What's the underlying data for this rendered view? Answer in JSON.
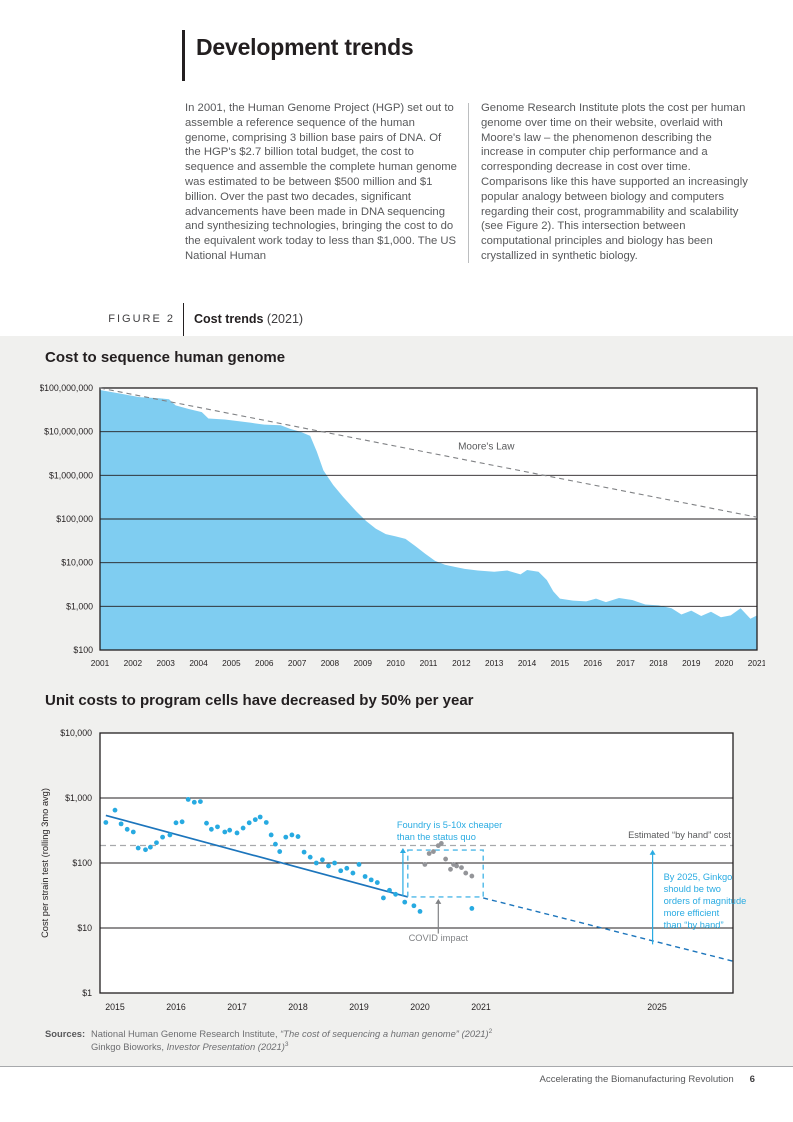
{
  "page": {
    "title": "Development trends",
    "columns": {
      "left": "In 2001, the Human Genome Project (HGP) set out to assemble a reference sequence of the human genome, comprising 3 billion base pairs of DNA. Of the HGP's $2.7 billion total budget, the cost to sequence and assemble the complete human genome was estimated to be between $500 million and $1 billion. Over the past two decades, significant advancements have been made in DNA sequencing and synthesizing technologies, bringing the cost to do the equivalent work today to less than $1,000. The US National Human",
      "right": "Genome Research Institute plots the cost per human genome over time on their website, overlaid with Moore's law – the phenomenon describing the increase in computer chip performance and a corresponding decrease in cost over time. Comparisons like this have supported an increasingly popular analogy between biology and computers regarding their cost, programmability and scalability (see Figure 2). This intersection between computational principles and biology has been crystallized in synthetic biology."
    },
    "figure": {
      "label": "FIGURE 2",
      "title": "Cost trends",
      "suffix": " (2021)"
    },
    "sources": {
      "label": "Sources:",
      "line1_prefix": "National Human Genome Research Institute, ",
      "line1_italic": "“The cost of sequencing a human genome” (2021)",
      "line1_sup": "2",
      "line2_prefix": "Ginkgo Bioworks, ",
      "line2_italic": "Investor Presentation (2021)",
      "line2_sup": "3"
    },
    "footer": {
      "text": "Accelerating the Biomanufacturing Revolution",
      "page_number": "6"
    }
  },
  "chart_data": [
    {
      "type": "area",
      "title": "Cost to sequence human genome",
      "log_scale": true,
      "ylim": [
        100,
        100000000
      ],
      "xlim": [
        2001,
        2021
      ],
      "grid": "horizontal",
      "y_ticks": [
        "$100,000,000",
        "$10,000,000",
        "$1,000,000",
        "$100,000",
        "$10,000",
        "$1,000",
        "$100"
      ],
      "y_tick_values": [
        100000000,
        10000000,
        1000000,
        100000,
        10000,
        1000,
        100
      ],
      "x_ticks": [
        2001,
        2002,
        2003,
        2004,
        2005,
        2006,
        2007,
        2008,
        2009,
        2010,
        2011,
        2012,
        2013,
        2014,
        2015,
        2016,
        2017,
        2018,
        2019,
        2020,
        2021
      ],
      "series": [
        {
          "name": "Cost per human genome",
          "color": "#7fcdf1",
          "points": [
            [
              2001.0,
              90000000
            ],
            [
              2001.6,
              75000000
            ],
            [
              2002.2,
              62000000
            ],
            [
              2002.8,
              58000000
            ],
            [
              2003.1,
              55000000
            ],
            [
              2003.3,
              40000000
            ],
            [
              2003.7,
              33000000
            ],
            [
              2004.1,
              28000000
            ],
            [
              2004.3,
              20000000
            ],
            [
              2004.8,
              19000000
            ],
            [
              2005.2,
              17500000
            ],
            [
              2005.6,
              16000000
            ],
            [
              2006.0,
              14500000
            ],
            [
              2006.5,
              14000000
            ],
            [
              2006.8,
              11500000
            ],
            [
              2007.1,
              10000000
            ],
            [
              2007.4,
              8000000
            ],
            [
              2007.6,
              3500000
            ],
            [
              2007.8,
              1300000
            ],
            [
              2008.1,
              600000
            ],
            [
              2008.4,
              320000
            ],
            [
              2008.8,
              150000
            ],
            [
              2009.1,
              90000
            ],
            [
              2009.4,
              60000
            ],
            [
              2009.7,
              45000
            ],
            [
              2010.0,
              40000
            ],
            [
              2010.3,
              35000
            ],
            [
              2010.6,
              24000
            ],
            [
              2010.9,
              16000
            ],
            [
              2011.2,
              11000
            ],
            [
              2011.5,
              9000
            ],
            [
              2011.8,
              8000
            ],
            [
              2012.1,
              7200
            ],
            [
              2012.5,
              6600
            ],
            [
              2013.0,
              6200
            ],
            [
              2013.4,
              6600
            ],
            [
              2013.8,
              5400
            ],
            [
              2014.0,
              6800
            ],
            [
              2014.35,
              6200
            ],
            [
              2014.6,
              4000
            ],
            [
              2014.8,
              2200
            ],
            [
              2015.0,
              1500
            ],
            [
              2015.4,
              1350
            ],
            [
              2015.8,
              1300
            ],
            [
              2016.1,
              1500
            ],
            [
              2016.4,
              1250
            ],
            [
              2016.8,
              1550
            ],
            [
              2017.2,
              1400
            ],
            [
              2017.6,
              1100
            ],
            [
              2018.0,
              1050
            ],
            [
              2018.4,
              900
            ],
            [
              2018.7,
              650
            ],
            [
              2019.0,
              800
            ],
            [
              2019.3,
              600
            ],
            [
              2019.6,
              750
            ],
            [
              2019.9,
              560
            ],
            [
              2020.2,
              620
            ],
            [
              2020.5,
              900
            ],
            [
              2020.8,
              520
            ],
            [
              2021.0,
              620
            ]
          ]
        }
      ],
      "overlays": {
        "moores_law": {
          "label": "Moore's Law",
          "color": "#808285",
          "points": [
            [
              2001,
              100000000
            ],
            [
              2021,
              110000
            ]
          ],
          "label_pos": [
            2011.9,
            3900000
          ]
        }
      }
    },
    {
      "type": "scatter",
      "title": "Unit costs to program cells have decreased by 50% per year",
      "ylabel": "Cost per strain test (rolling 3mo avg)",
      "log_scale": true,
      "ylim": [
        1,
        10000
      ],
      "y_ticks": [
        "$10,000",
        "$1,000",
        "$100",
        "$10",
        "$1"
      ],
      "y_tick_values": [
        10000,
        1000,
        100,
        10,
        1
      ],
      "x_ticks": [
        2015,
        2016,
        2017,
        2018,
        2019,
        2020,
        2021,
        2025
      ],
      "series": [
        {
          "name": "Foundry cost per strain test",
          "color": "#27aae1",
          "points": [
            [
              2014.85,
              420
            ],
            [
              2015.0,
              650
            ],
            [
              2015.1,
              400
            ],
            [
              2015.2,
              330
            ],
            [
              2015.3,
              300
            ],
            [
              2015.38,
              170
            ],
            [
              2015.5,
              160
            ],
            [
              2015.58,
              175
            ],
            [
              2015.68,
              205
            ],
            [
              2015.78,
              250
            ],
            [
              2015.9,
              270
            ],
            [
              2016.0,
              415
            ],
            [
              2016.1,
              430
            ],
            [
              2016.2,
              950
            ],
            [
              2016.3,
              860
            ],
            [
              2016.4,
              880
            ],
            [
              2016.5,
              410
            ],
            [
              2016.58,
              330
            ],
            [
              2016.68,
              360
            ],
            [
              2016.8,
              300
            ],
            [
              2016.88,
              320
            ],
            [
              2017.0,
              290
            ],
            [
              2017.1,
              345
            ],
            [
              2017.2,
              415
            ],
            [
              2017.3,
              465
            ],
            [
              2017.38,
              510
            ],
            [
              2017.48,
              420
            ],
            [
              2017.56,
              270
            ],
            [
              2017.63,
              195
            ],
            [
              2017.7,
              150
            ],
            [
              2017.8,
              250
            ],
            [
              2017.9,
              270
            ],
            [
              2018.0,
              255
            ],
            [
              2018.1,
              147
            ],
            [
              2018.2,
              123
            ],
            [
              2018.3,
              100
            ],
            [
              2018.4,
              112
            ],
            [
              2018.5,
              90
            ],
            [
              2018.6,
              100
            ],
            [
              2018.7,
              76
            ],
            [
              2018.8,
              83
            ],
            [
              2018.9,
              70
            ],
            [
              2019.0,
              95
            ],
            [
              2019.1,
              62
            ],
            [
              2019.2,
              55
            ],
            [
              2019.3,
              50
            ],
            [
              2019.4,
              29
            ],
            [
              2019.5,
              38
            ],
            [
              2019.6,
              33
            ],
            [
              2019.75,
              25
            ],
            [
              2019.9,
              22
            ],
            [
              2020.0,
              18
            ],
            [
              2020.85,
              20
            ]
          ]
        },
        {
          "name": "COVID impact period",
          "color": "#949599",
          "points": [
            [
              2020.08,
              95
            ],
            [
              2020.15,
              140
            ],
            [
              2020.22,
              150
            ],
            [
              2020.3,
              185
            ],
            [
              2020.35,
              200
            ],
            [
              2020.42,
              115
            ],
            [
              2020.5,
              80
            ],
            [
              2020.55,
              95
            ],
            [
              2020.6,
              90
            ],
            [
              2020.68,
              85
            ],
            [
              2020.75,
              70
            ],
            [
              2020.85,
              63
            ]
          ]
        }
      ],
      "trend_solid": {
        "color": "#1c75bc",
        "points": [
          [
            2014.85,
            540
          ],
          [
            2019.8,
            30
          ]
        ]
      },
      "trend_dashed": {
        "color": "#1c75bc",
        "points": [
          [
            2021.05,
            29
          ],
          [
            2026.8,
            3.0
          ]
        ]
      },
      "byhand_line": {
        "value": 186,
        "color": "#a7a9ac"
      },
      "covid_box": {
        "x1": 2019.8,
        "x2": 2021.05,
        "v1": 158,
        "v2": 30,
        "color": "#4db8e8"
      },
      "annotations": [
        {
          "id": "foundry-note",
          "lines": [
            "Foundry is 5-10x cheaper",
            "than the status quo"
          ],
          "x": 2019.62,
          "v": 345,
          "align": "start",
          "color": "#29abe2",
          "arrow": {
            "x": 2019.72,
            "v_from": 31,
            "v_to": 170
          }
        },
        {
          "id": "byhand-note",
          "lines": [
            "Estimated “by hand” cost"
          ],
          "x": 2026.68,
          "v": 243,
          "align": "end",
          "color": "#58595b"
        },
        {
          "id": "covid-note",
          "lines": [
            "COVID impact"
          ],
          "x": 2020.3,
          "v": 6.3,
          "align": "middle",
          "color": "#808285",
          "arrow": {
            "x": 2020.3,
            "v_from": 8.2,
            "v_to": 28
          }
        },
        {
          "id": "by2025-note",
          "lines": [
            "By 2025, Ginkgo",
            "should be two",
            "orders of magnitude",
            "more efficient",
            "than “by hand”"
          ],
          "x": 2025.15,
          "v": 55,
          "align": "start",
          "color": "#29abe2",
          "arrow": {
            "x": 2024.9,
            "v_from": 5.6,
            "v_to": 160
          }
        }
      ]
    }
  ]
}
